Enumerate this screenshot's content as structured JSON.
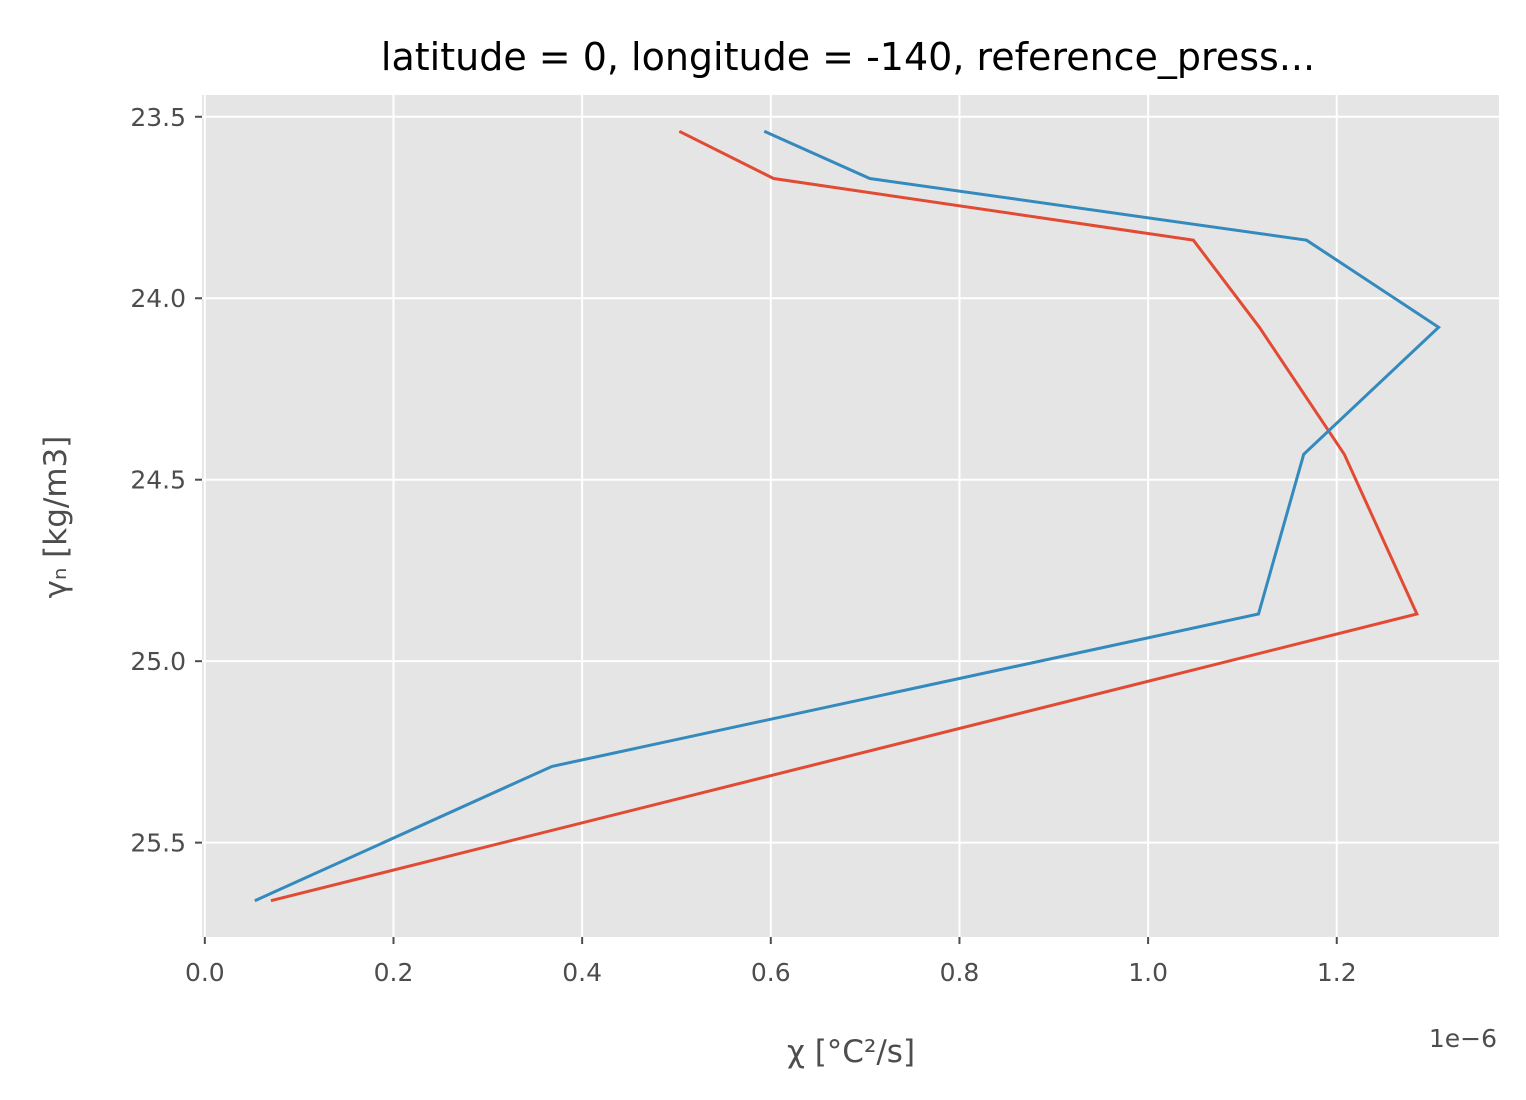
{
  "chart_data": {
    "type": "line",
    "title": "latitude = 0, longitude = -140, reference_press...",
    "xlabel": "χ [°C²/s]",
    "ylabel": "γₙ [kg/m3]",
    "x_offset_label": "1e−6",
    "xlim": [
      -0.003,
      1.372
    ],
    "ylim": [
      25.76,
      23.44
    ],
    "y_inverted": true,
    "xticks": [
      0.0,
      0.2,
      0.4,
      0.6,
      0.8,
      1.0,
      1.2
    ],
    "xtick_labels": [
      "0.0",
      "0.2",
      "0.4",
      "0.6",
      "0.8",
      "1.0",
      "1.2"
    ],
    "yticks": [
      23.5,
      24.0,
      24.5,
      25.0,
      25.5
    ],
    "ytick_labels": [
      "23.5",
      "24.0",
      "24.5",
      "25.0",
      "25.5"
    ],
    "grid": true,
    "legend": "none",
    "series": [
      {
        "color": "#e24a33",
        "points": [
          [
            0.503,
            23.54
          ],
          [
            0.603,
            23.67
          ],
          [
            1.048,
            23.84
          ],
          [
            1.118,
            24.08
          ],
          [
            1.208,
            24.43
          ],
          [
            1.285,
            24.87
          ],
          [
            0.07,
            25.66
          ]
        ]
      },
      {
        "color": "#348abd",
        "points": [
          [
            0.593,
            23.54
          ],
          [
            0.705,
            23.67
          ],
          [
            1.168,
            23.84
          ],
          [
            1.308,
            24.08
          ],
          [
            1.165,
            24.43
          ],
          [
            1.117,
            24.87
          ],
          [
            0.368,
            25.29
          ],
          [
            0.053,
            25.66
          ]
        ]
      }
    ]
  },
  "style": {
    "axes_bg": "#e5e5e5",
    "grid_color": "#ffffff",
    "tick_color": "#4d4d4d"
  }
}
